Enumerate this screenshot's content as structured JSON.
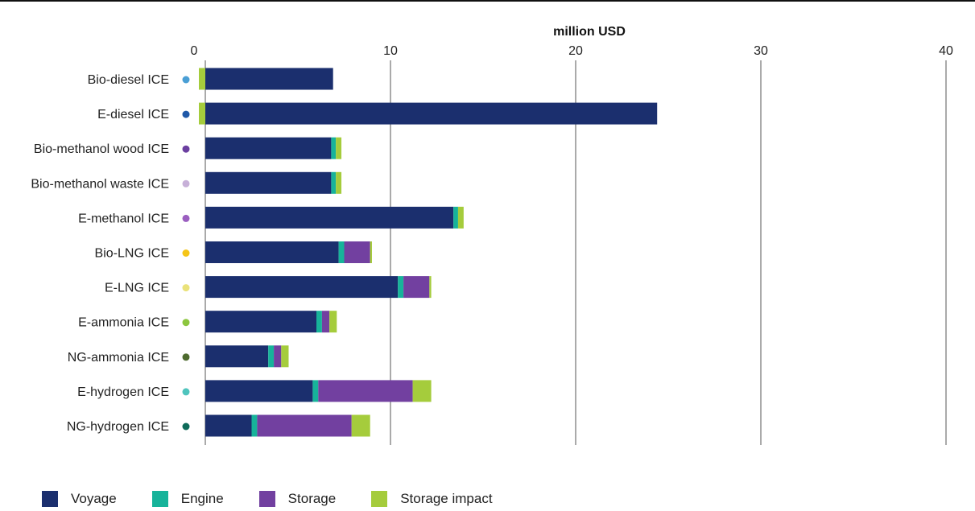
{
  "chart_data": {
    "type": "bar",
    "orientation": "horizontal",
    "stacked": true,
    "axis_title": "million USD",
    "xlim": [
      0,
      40
    ],
    "xticks": [
      0,
      10,
      20,
      30,
      40
    ],
    "grid": true,
    "legend_position": "bottom",
    "categories": [
      "Bio-diesel ICE",
      "E-diesel ICE",
      "Bio-methanol wood ICE",
      "Bio-methanol waste ICE",
      "E-methanol ICE",
      "Bio-LNG ICE",
      "E-LNG ICE",
      "E-ammonia ICE",
      "NG-ammonia ICE",
      "E-hydrogen ICE",
      "NG-hydrogen ICE"
    ],
    "marker_colors": [
      "#4a9fd5",
      "#1f58a8",
      "#6b3fa0",
      "#c7b0d8",
      "#9b5fc0",
      "#f5c518",
      "#eae27a",
      "#8cc63f",
      "#4e6b2f",
      "#4fc4bd",
      "#0f6b5a"
    ],
    "series": [
      {
        "name": "Voyage",
        "color": "#1b2f6e",
        "values": [
          6.9,
          24.4,
          6.8,
          6.8,
          13.4,
          7.2,
          10.4,
          6.0,
          3.4,
          5.8,
          2.5
        ]
      },
      {
        "name": "Engine",
        "color": "#17b39a",
        "values": [
          0,
          0,
          0.25,
          0.25,
          0.25,
          0.3,
          0.3,
          0.3,
          0.3,
          0.3,
          0.3
        ]
      },
      {
        "name": "Storage",
        "color": "#7240a0",
        "values": [
          0,
          0,
          0,
          0,
          0,
          1.4,
          1.4,
          0.4,
          0.4,
          5.1,
          5.1
        ]
      },
      {
        "name": "Storage impact",
        "color": "#a5cc3c",
        "values": [
          0.3,
          0.3,
          0.3,
          0.3,
          0.3,
          0.1,
          0.1,
          0.4,
          0.4,
          1.0,
          1.0
        ]
      }
    ]
  }
}
